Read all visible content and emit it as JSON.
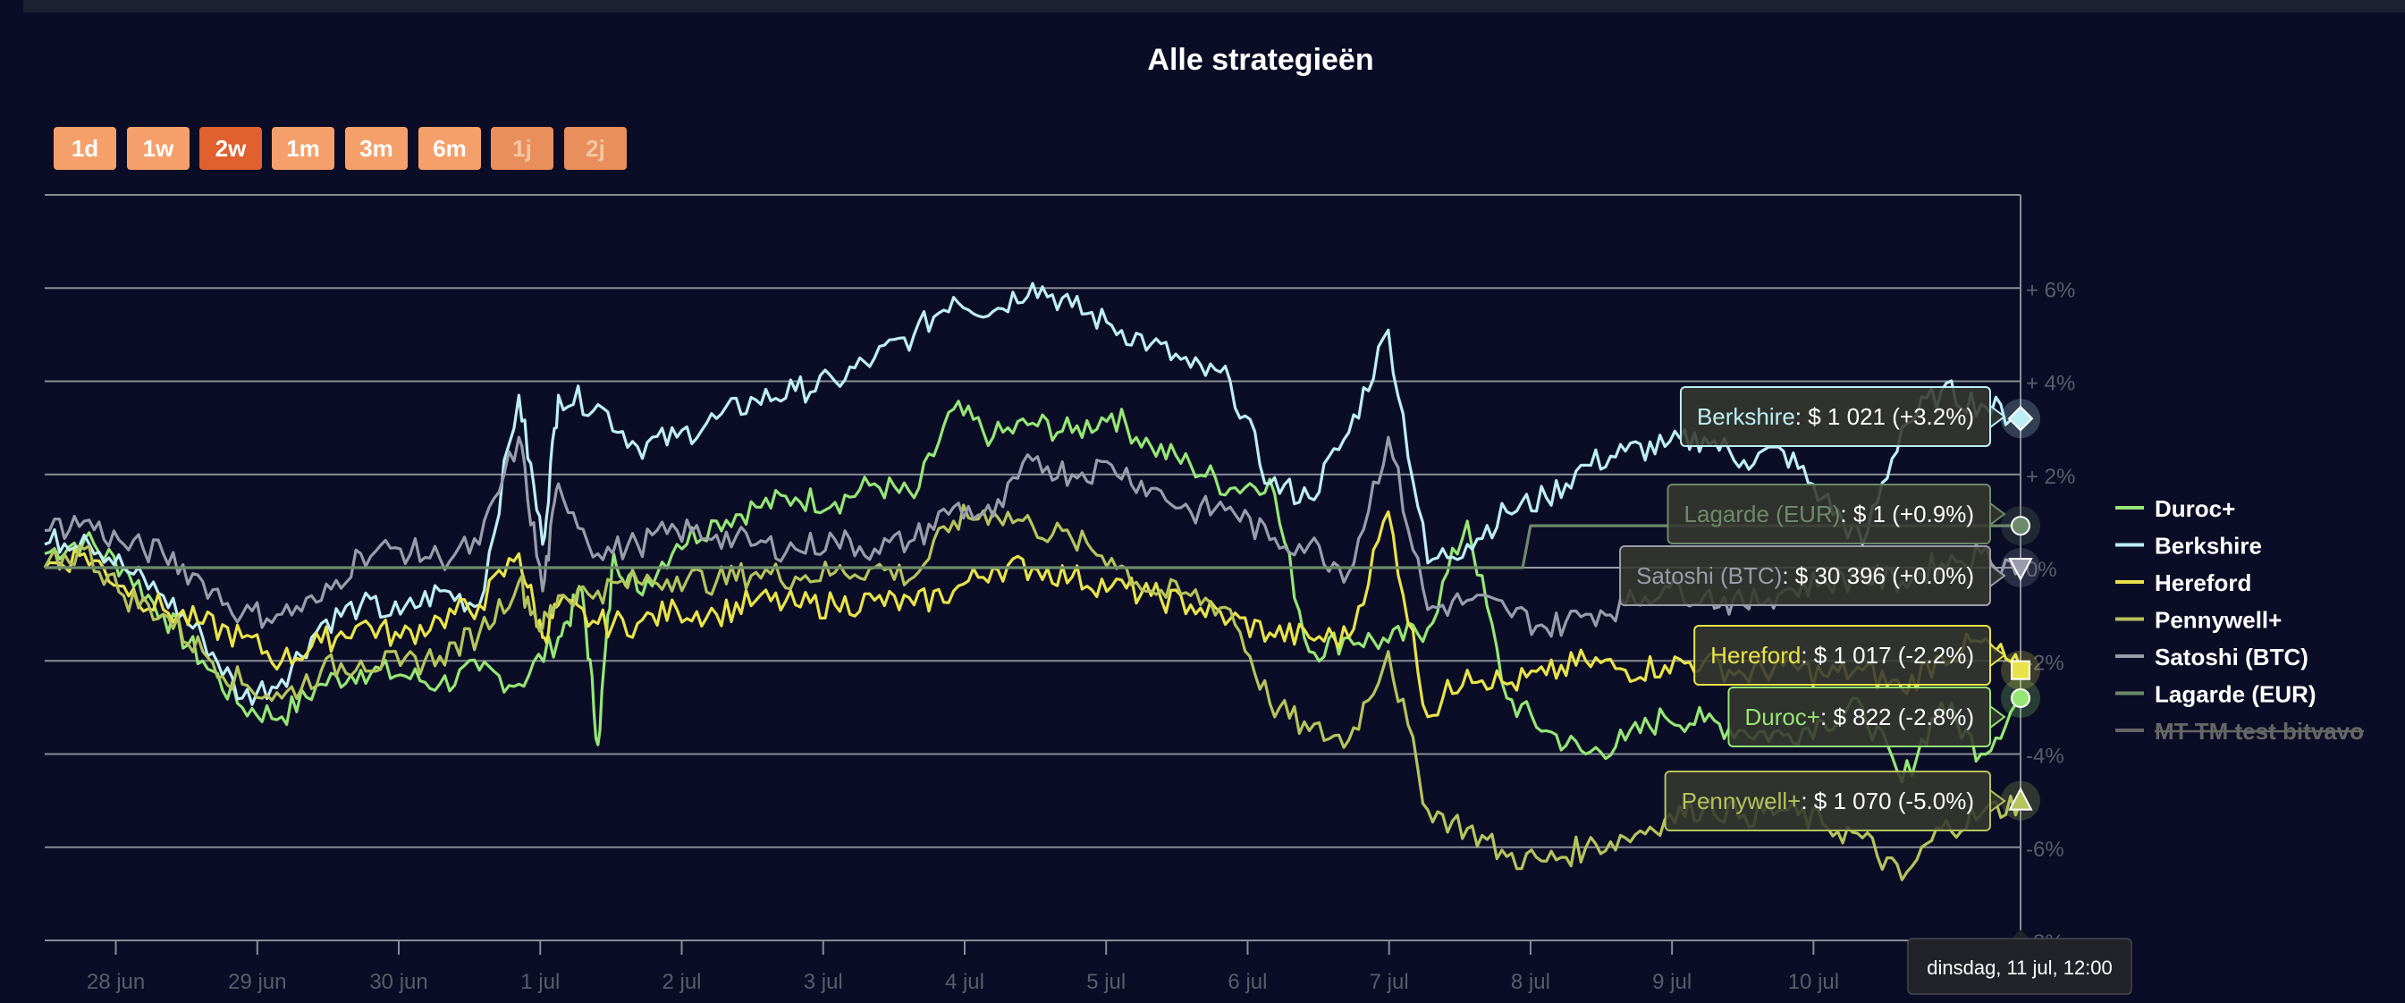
{
  "title": "Alle strategieën",
  "range_buttons": [
    {
      "label": "1d",
      "state": "normal"
    },
    {
      "label": "1w",
      "state": "normal"
    },
    {
      "label": "2w",
      "state": "active"
    },
    {
      "label": "1m",
      "state": "normal"
    },
    {
      "label": "3m",
      "state": "normal"
    },
    {
      "label": "6m",
      "state": "normal"
    },
    {
      "label": "1j",
      "state": "disabled"
    },
    {
      "label": "2j",
      "state": "disabled"
    }
  ],
  "chart_data": {
    "type": "line",
    "x_range": [
      "27 jun 12:00",
      "11 jul 12:00"
    ],
    "x_ticks": [
      "28 jun",
      "29 jun",
      "30 jun",
      "1 jul",
      "2 jul",
      "3 jul",
      "4 jul",
      "5 jul",
      "6 jul",
      "7 jul",
      "8 jul",
      "9 jul",
      "10 jul"
    ],
    "y_ticks": [
      "+ 6%",
      "+ 4%",
      "+ 2%",
      "0%",
      "-2%",
      "-4%",
      "-6%",
      "-8%"
    ],
    "y_tick_values": [
      6,
      4,
      2,
      0,
      -2,
      -4,
      -6,
      -8
    ],
    "ylim": [
      -8,
      8
    ],
    "grid": true,
    "legend_position": "right",
    "x_hover_label": "dinsdag, 11 jul, 12:00",
    "series": [
      {
        "name": "Duroc+",
        "color": "#95e676",
        "marker": "circle",
        "visible": true,
        "tooltip": {
          "value": "$ 822",
          "change": "(-2.8%)"
        },
        "points": [
          [
            0,
            0.3
          ],
          [
            0.5,
            0.6
          ],
          [
            1,
            0
          ],
          [
            1.5,
            -1
          ],
          [
            2,
            -2
          ],
          [
            2.5,
            -3
          ],
          [
            3,
            -3.2
          ],
          [
            3.5,
            -2.5
          ],
          [
            4,
            -2.2
          ],
          [
            4.5,
            -2.3
          ],
          [
            5,
            -2.5
          ],
          [
            5.5,
            -2.2
          ],
          [
            6,
            -2.5
          ],
          [
            6.5,
            -1.5
          ],
          [
            6.8,
            -0.5
          ],
          [
            7,
            -3.8
          ],
          [
            7.2,
            0.3
          ],
          [
            7.5,
            -0.5
          ],
          [
            8,
            0.5
          ],
          [
            8.5,
            1
          ],
          [
            9,
            1.3
          ],
          [
            9.5,
            1.5
          ],
          [
            10,
            1.4
          ],
          [
            10.5,
            1.8
          ],
          [
            11,
            1.5
          ],
          [
            11.5,
            3.4
          ],
          [
            12,
            2.8
          ],
          [
            12.5,
            3.1
          ],
          [
            13,
            2.9
          ],
          [
            13.5,
            3.3
          ],
          [
            14,
            2.6
          ],
          [
            14.5,
            2.2
          ],
          [
            15,
            1.7
          ],
          [
            15.5,
            1.9
          ],
          [
            16,
            -1.8
          ],
          [
            16.5,
            -1.5
          ],
          [
            17,
            -1.6
          ],
          [
            17.5,
            -1.3
          ],
          [
            18,
            1
          ],
          [
            18.5,
            -2.8
          ],
          [
            19,
            -3.5
          ],
          [
            19.5,
            -4
          ],
          [
            20,
            -3.7
          ],
          [
            20.5,
            -3.2
          ],
          [
            21,
            -3.3
          ],
          [
            21.5,
            -3.5
          ],
          [
            22,
            -3.6
          ],
          [
            22.5,
            -3.3
          ],
          [
            23,
            -3
          ],
          [
            23.5,
            -4.6
          ],
          [
            24,
            -2.9
          ],
          [
            24.5,
            -4
          ],
          [
            25,
            -2.8
          ]
        ]
      },
      {
        "name": "Berkshire",
        "color": "#bdeef5",
        "marker": "diamond",
        "visible": true,
        "tooltip": {
          "value": "$ 1 021",
          "change": "(+3.2%)"
        },
        "points": [
          [
            0,
            0.5
          ],
          [
            0.5,
            0.7
          ],
          [
            1,
            0
          ],
          [
            1.5,
            -0.6
          ],
          [
            2,
            -1.5
          ],
          [
            2.5,
            -2.8
          ],
          [
            3,
            -2.4
          ],
          [
            3.5,
            -1.2
          ],
          [
            4,
            -0.8
          ],
          [
            4.5,
            -1
          ],
          [
            5,
            -0.5
          ],
          [
            5.5,
            -0.8
          ],
          [
            6,
            3.7
          ],
          [
            6.3,
            0.5
          ],
          [
            6.5,
            3.7
          ],
          [
            7,
            3.5
          ],
          [
            7.5,
            2.6
          ],
          [
            8,
            2.8
          ],
          [
            8.5,
            3.2
          ],
          [
            9,
            3.6
          ],
          [
            9.5,
            3.8
          ],
          [
            10,
            4
          ],
          [
            10.5,
            4.5
          ],
          [
            11,
            5
          ],
          [
            11.5,
            5.8
          ],
          [
            12,
            5.5
          ],
          [
            12.5,
            6.1
          ],
          [
            13,
            5.6
          ],
          [
            13.5,
            5.2
          ],
          [
            14,
            4.8
          ],
          [
            14.5,
            4.3
          ],
          [
            15,
            4
          ],
          [
            15.5,
            1.8
          ],
          [
            16,
            1.5
          ],
          [
            16.5,
            2.9
          ],
          [
            17,
            5.1
          ],
          [
            17.5,
            0.1
          ],
          [
            18,
            0.5
          ],
          [
            18.5,
            1.2
          ],
          [
            19,
            1.5
          ],
          [
            19.5,
            2.2
          ],
          [
            20,
            2.5
          ],
          [
            20.5,
            2.6
          ],
          [
            21,
            2.8
          ],
          [
            21.5,
            2.3
          ],
          [
            22,
            2.5
          ],
          [
            22.5,
            1.5
          ],
          [
            23,
            0.5
          ],
          [
            23.5,
            3
          ],
          [
            24,
            3.8
          ],
          [
            24.5,
            3.5
          ],
          [
            25,
            3.2
          ]
        ]
      },
      {
        "name": "Hereford",
        "color": "#e8e34a",
        "marker": "square",
        "visible": true,
        "tooltip": {
          "value": "$ 1 017",
          "change": "(-2.2%)"
        },
        "points": [
          [
            0,
            0
          ],
          [
            0.5,
            0.3
          ],
          [
            1,
            -0.4
          ],
          [
            1.5,
            -0.9
          ],
          [
            2,
            -1.2
          ],
          [
            2.5,
            -1.5
          ],
          [
            3,
            -2
          ],
          [
            3.5,
            -1.6
          ],
          [
            4,
            -1.2
          ],
          [
            4.5,
            -1.5
          ],
          [
            5,
            -1.1
          ],
          [
            5.5,
            -0.8
          ],
          [
            6,
            0.3
          ],
          [
            6.3,
            -1.5
          ],
          [
            6.5,
            -0.8
          ],
          [
            7,
            -1.2
          ],
          [
            7.5,
            -1.2
          ],
          [
            8,
            -0.9
          ],
          [
            8.5,
            -1
          ],
          [
            9,
            -0.7
          ],
          [
            9.5,
            -0.8
          ],
          [
            10,
            -0.8
          ],
          [
            10.5,
            -0.7
          ],
          [
            11,
            -0.8
          ],
          [
            11.5,
            -0.5
          ],
          [
            12,
            0
          ],
          [
            12.5,
            0
          ],
          [
            13,
            -0.2
          ],
          [
            13.5,
            -0.4
          ],
          [
            14,
            -0.6
          ],
          [
            14.5,
            -0.8
          ],
          [
            15,
            -1.1
          ],
          [
            15.5,
            -1.4
          ],
          [
            16,
            -1.5
          ],
          [
            16.5,
            -1.5
          ],
          [
            17,
            1.2
          ],
          [
            17.5,
            -3.2
          ],
          [
            18,
            -2.2
          ],
          [
            18.5,
            -2.5
          ],
          [
            19,
            -2.3
          ],
          [
            19.5,
            -2
          ],
          [
            20,
            -2.2
          ],
          [
            20.5,
            -2.1
          ],
          [
            21,
            -2
          ],
          [
            21.5,
            -2.3
          ],
          [
            22,
            -2.1
          ],
          [
            22.5,
            -2.3
          ],
          [
            23,
            -2.2
          ],
          [
            23.5,
            -2.6
          ],
          [
            24,
            -1.9
          ],
          [
            24.5,
            -1.6
          ],
          [
            25,
            -2.2
          ]
        ]
      },
      {
        "name": "Pennywell+",
        "color": "#b5c45c",
        "marker": "triangle",
        "visible": true,
        "tooltip": {
          "value": "$ 1 070",
          "change": "(-5.0%)"
        },
        "points": [
          [
            0,
            0
          ],
          [
            0.5,
            0.4
          ],
          [
            1,
            -0.6
          ],
          [
            1.5,
            -1
          ],
          [
            2,
            -1.8
          ],
          [
            2.5,
            -2.5
          ],
          [
            3,
            -2.8
          ],
          [
            3.5,
            -2.2
          ],
          [
            4,
            -2
          ],
          [
            4.5,
            -2.1
          ],
          [
            5,
            -1.9
          ],
          [
            5.5,
            -1.4
          ],
          [
            6,
            -0.3
          ],
          [
            6.3,
            -1.3
          ],
          [
            6.5,
            -0.6
          ],
          [
            7,
            -0.5
          ],
          [
            7.5,
            -0.3
          ],
          [
            8,
            -0.2
          ],
          [
            8.5,
            -0.3
          ],
          [
            9,
            -0.1
          ],
          [
            9.5,
            -0.2
          ],
          [
            10,
            -0.1
          ],
          [
            10.5,
            0
          ],
          [
            11,
            -0.2
          ],
          [
            11.5,
            1
          ],
          [
            12,
            1.2
          ],
          [
            12.5,
            0.9
          ],
          [
            13,
            0.6
          ],
          [
            13.5,
            0.2
          ],
          [
            14,
            -0.5
          ],
          [
            14.5,
            -0.6
          ],
          [
            15,
            -0.9
          ],
          [
            15.5,
            -2.9
          ],
          [
            16,
            -3.5
          ],
          [
            16.5,
            -3.7
          ],
          [
            17,
            -1.8
          ],
          [
            17.5,
            -5.2
          ],
          [
            18,
            -5.6
          ],
          [
            18.5,
            -6.2
          ],
          [
            19,
            -6.3
          ],
          [
            19.5,
            -6
          ],
          [
            20,
            -5.8
          ],
          [
            20.5,
            -5.4
          ],
          [
            21,
            -5.1
          ],
          [
            21.5,
            -5.3
          ],
          [
            22,
            -5.2
          ],
          [
            22.5,
            -5.5
          ],
          [
            23,
            -5.8
          ],
          [
            23.5,
            -6.7
          ],
          [
            24,
            -5.6
          ],
          [
            24.5,
            -5.3
          ],
          [
            25,
            -5
          ]
        ]
      },
      {
        "name": "Satoshi (BTC)",
        "color": "#9a9cab",
        "marker": "triangle-down",
        "visible": true,
        "tooltip": {
          "value": "$ 30 396",
          "change": "(+0.0%)"
        },
        "points": [
          [
            0,
            0.8
          ],
          [
            0.5,
            1
          ],
          [
            1,
            0.5
          ],
          [
            1.5,
            0.3
          ],
          [
            2,
            -0.3
          ],
          [
            2.5,
            -1
          ],
          [
            3,
            -1
          ],
          [
            3.5,
            -0.7
          ],
          [
            4,
            0.3
          ],
          [
            4.5,
            0.4
          ],
          [
            5,
            0.2
          ],
          [
            5.5,
            0.5
          ],
          [
            6,
            2.8
          ],
          [
            6.3,
            -0.5
          ],
          [
            6.5,
            1.8
          ],
          [
            7,
            0.3
          ],
          [
            7.5,
            0.5
          ],
          [
            8,
            0.8
          ],
          [
            8.5,
            0.7
          ],
          [
            9,
            0.5
          ],
          [
            9.5,
            0.4
          ],
          [
            10,
            0.6
          ],
          [
            10.5,
            0.4
          ],
          [
            11,
            0.6
          ],
          [
            11.5,
            1.3
          ],
          [
            12,
            1.1
          ],
          [
            12.5,
            2.3
          ],
          [
            13,
            2
          ],
          [
            13.5,
            2.2
          ],
          [
            14,
            1.7
          ],
          [
            14.5,
            1.2
          ],
          [
            15,
            1.3
          ],
          [
            15.5,
            0.6
          ],
          [
            16,
            0.5
          ],
          [
            16.5,
            -0.1
          ],
          [
            17,
            2.8
          ],
          [
            17.5,
            -0.9
          ],
          [
            18,
            -0.7
          ],
          [
            18.5,
            -0.9
          ],
          [
            19,
            -1.3
          ],
          [
            19.5,
            -1
          ],
          [
            20,
            -0.8
          ],
          [
            20.5,
            -0.4
          ],
          [
            21,
            -0.6
          ],
          [
            21.5,
            -0.8
          ],
          [
            22,
            -0.5
          ],
          [
            22.5,
            -0.3
          ],
          [
            23,
            -0.2
          ],
          [
            23.5,
            -0.3
          ],
          [
            24,
            0.1
          ],
          [
            24.5,
            0.3
          ],
          [
            25,
            0
          ]
        ]
      },
      {
        "name": "Lagarde (EUR)",
        "color": "#6d8a6a",
        "marker": "circle",
        "visible": true,
        "tooltip": {
          "value": "$ 1",
          "change": "(+0.9%)"
        },
        "points": [
          [
            0,
            0
          ],
          [
            18.7,
            0
          ],
          [
            18.8,
            0.9
          ],
          [
            25,
            0.9
          ]
        ]
      },
      {
        "name": "MT TM test bitvavo",
        "color": "#666666",
        "marker": "none",
        "visible": false,
        "tooltip": null,
        "points": []
      }
    ]
  },
  "tooltips_order": [
    "Berkshire",
    "Lagarde (EUR)",
    "Satoshi (BTC)",
    "Hereford",
    "Duroc+",
    "Pennywell+"
  ]
}
